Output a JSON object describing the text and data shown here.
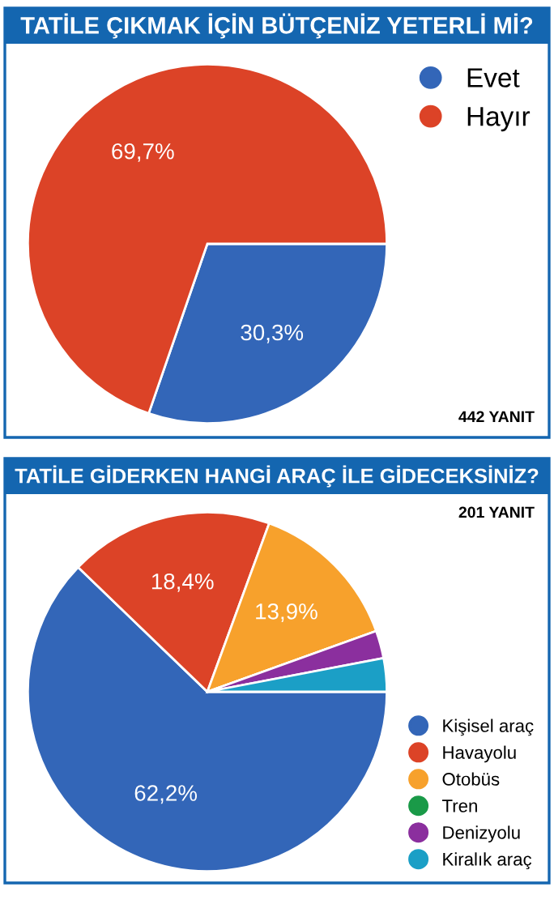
{
  "chart_data": [
    {
      "type": "pie",
      "title": "TATİLE ÇIKMAK İÇİN BÜTÇENİZ YETERLİ Mİ?",
      "categories": [
        "Evet",
        "Hayır"
      ],
      "values": [
        30.3,
        69.7
      ],
      "colors": [
        "#3366b8",
        "#dc4327"
      ],
      "value_labels": [
        "30,3%",
        "69,7%"
      ],
      "legend": "top right",
      "annotations": [
        "442 YANIT"
      ]
    },
    {
      "type": "pie",
      "title": "TATİLE GİDERKEN HANGİ ARAÇ İLE GİDECEKSİNİZ?",
      "categories": [
        "Kişisel araç",
        "Havayolu",
        "Otobüs",
        "Tren",
        "Denizyolu",
        "Kiralık araç"
      ],
      "values": [
        62.2,
        18.4,
        13.9,
        0,
        2.5,
        3.0
      ],
      "colors": [
        "#3366b8",
        "#dc4327",
        "#f7a12c",
        "#1a9a48",
        "#8b2f9e",
        "#1b9fc6"
      ],
      "value_labels": [
        "62,2%",
        "18,4%",
        "13,9%",
        null,
        null,
        null
      ],
      "legend": "bottom right",
      "annotations": [
        "201 YANIT"
      ]
    }
  ]
}
